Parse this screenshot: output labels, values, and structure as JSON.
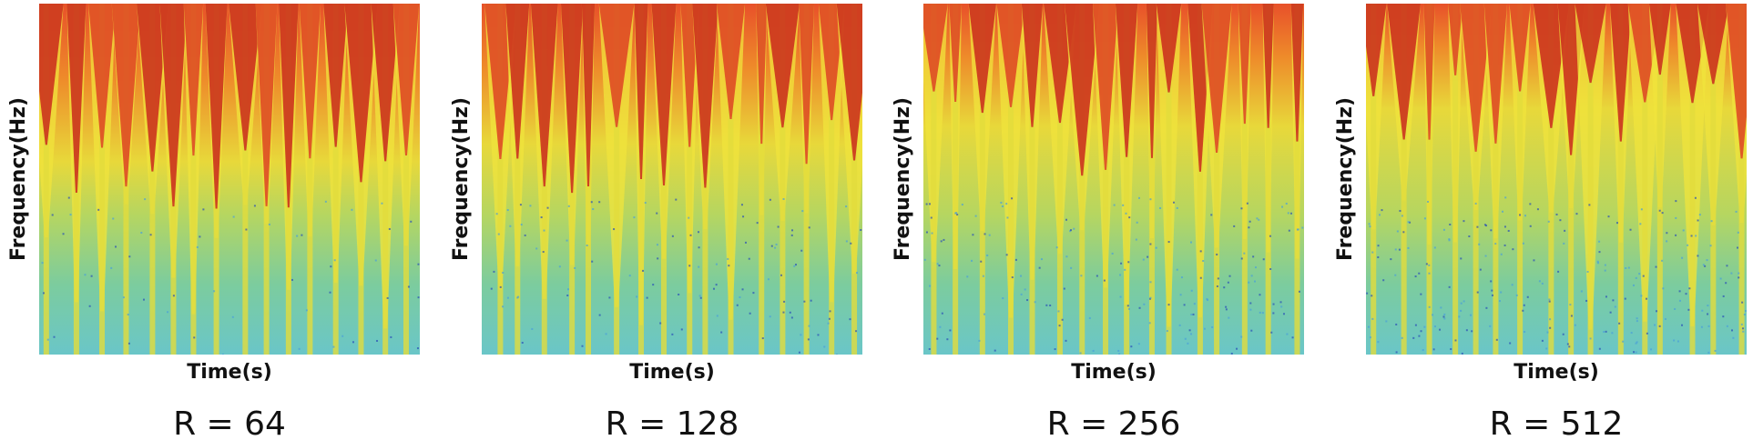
{
  "chart_data": [
    {
      "type": "spectrogram",
      "ylabel": "Frequency(Hz)",
      "xlabel": "Time(s)",
      "caption": "R = 64"
    },
    {
      "type": "spectrogram",
      "ylabel": "Frequency(Hz)",
      "xlabel": "Time(s)",
      "caption": "R = 128"
    },
    {
      "type": "spectrogram",
      "ylabel": "Frequency(Hz)",
      "xlabel": "Time(s)",
      "caption": "R = 256"
    },
    {
      "type": "spectrogram",
      "ylabel": "Frequency(Hz)",
      "xlabel": "Time(s)",
      "caption": "R = 512"
    }
  ]
}
